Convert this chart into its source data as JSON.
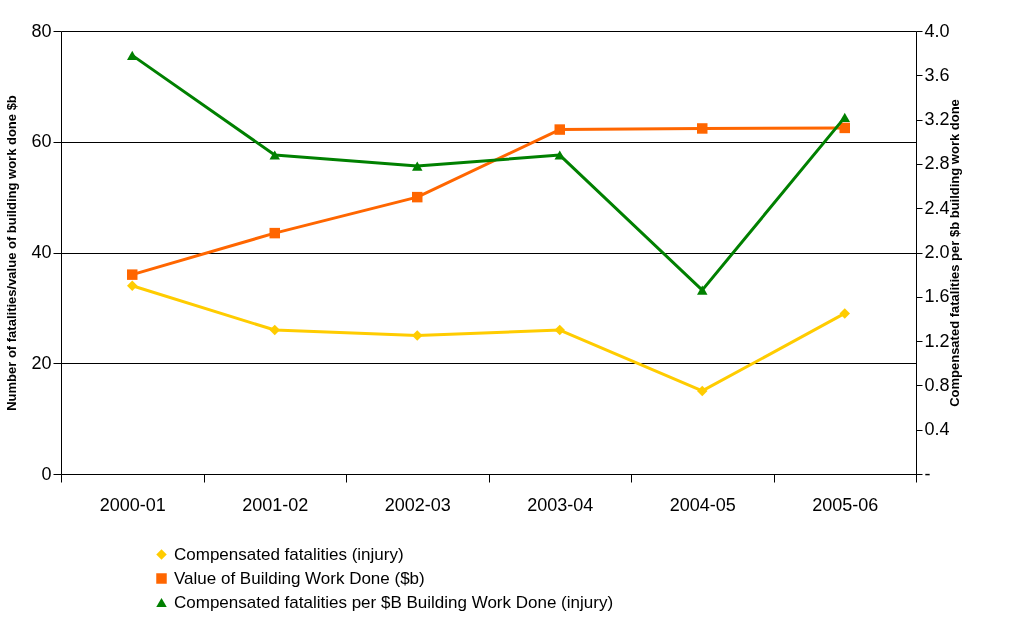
{
  "chart_data": {
    "type": "line",
    "xlabel": null,
    "ylabel": "Number of fatalities/value of building work done $b",
    "y2label": "Compensated fatalities per $b building work done",
    "categories": [
      "2000-01",
      "2001-02",
      "2002-03",
      "2003-04",
      "2004-05",
      "2005-06"
    ],
    "series": [
      {
        "name": "Compensated fatalities (injury)",
        "color": "#ffcc00",
        "marker": "diamond",
        "values": [
          34,
          26,
          25,
          26,
          15,
          29
        ]
      },
      {
        "name": "Value of Building Work Done ($b)",
        "color": "#ff6600",
        "marker": "square",
        "values": [
          36,
          43.5,
          50,
          62.2,
          62.4,
          62.5
        ]
      },
      {
        "name": "Compensated fatalities per $B Building Work Done (injury)",
        "color": "#008000",
        "marker": "triangle",
        "axis": "y2",
        "values": [
          3.78,
          2.88,
          2.78,
          2.88,
          1.66,
          3.22
        ]
      }
    ],
    "ylim": [
      0,
      80
    ],
    "yticks": [
      0,
      20,
      40,
      60,
      80
    ],
    "y2lim": [
      0,
      4
    ],
    "y2ticks": [
      {
        "value": 0,
        "label": "-"
      },
      {
        "value": 0.4,
        "label": "0.4"
      },
      {
        "value": 0.8,
        "label": "0.8"
      },
      {
        "value": 1.2,
        "label": "1.2"
      },
      {
        "value": 1.6,
        "label": "1.6"
      },
      {
        "value": 2.0,
        "label": "2.0"
      },
      {
        "value": 2.4,
        "label": "2.4"
      },
      {
        "value": 2.8,
        "label": "2.8"
      },
      {
        "value": 3.2,
        "label": "3.2"
      },
      {
        "value": 3.6,
        "label": "3.6"
      },
      {
        "value": 4.0,
        "label": "4.0"
      }
    ],
    "grid": "y",
    "legend": "bottom",
    "line_style": "solid"
  }
}
